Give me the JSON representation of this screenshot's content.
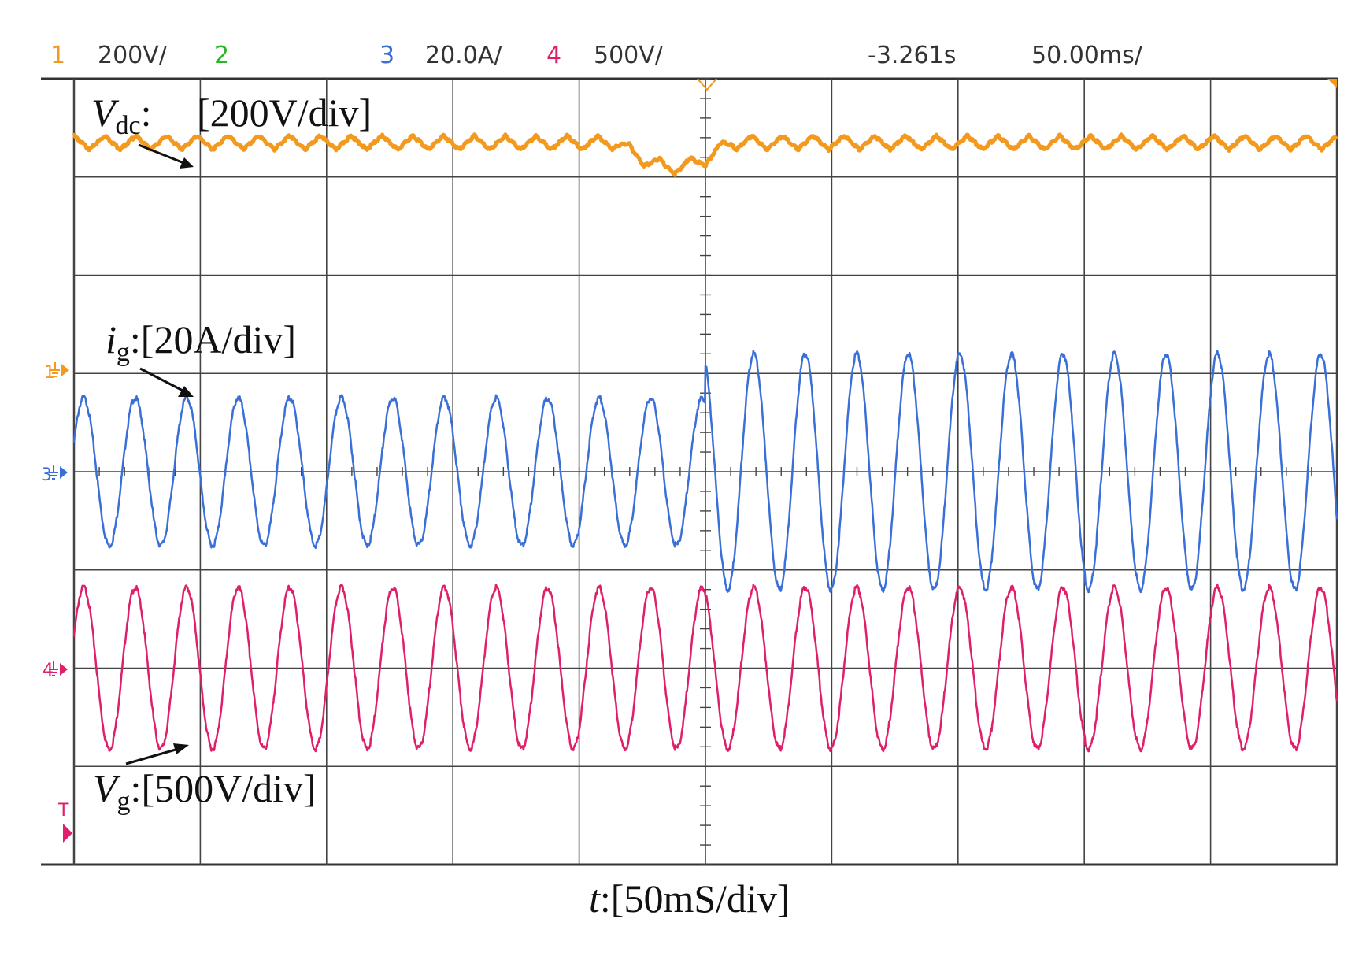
{
  "header": {
    "ch1_num": "1",
    "ch1_scale": "200V/",
    "ch2_num": "2",
    "ch3_num": "3",
    "ch3_scale": "20.0A/",
    "ch4_num": "4",
    "ch4_scale": "500V/",
    "delay": "-3.261s",
    "timebase": "50.00ms/"
  },
  "colors": {
    "ch1": "#f39a1e",
    "ch2": "#2db52d",
    "ch3": "#3a6fd8",
    "ch4": "#e01f6b"
  },
  "markers": {
    "ch1": "1",
    "ch3": "3",
    "ch4": "4",
    "trigger": "T"
  },
  "annotations": {
    "vdc_symbol": "V",
    "vdc_sub": "dc",
    "vdc_colon": ":",
    "vdc_scale": "[200V/div]",
    "ig_symbol": "i",
    "ig_sub": "g",
    "ig_scale": ":[20A/div]",
    "vg_symbol": "V",
    "vg_sub": "g",
    "vg_scale": ":[500V/div]",
    "t_symbol": "t",
    "t_scale": ":[50mS/div]"
  },
  "chart_data": {
    "type": "line",
    "title": "",
    "xlabel": "t:[50mS/div]",
    "x_divisions": 10,
    "y_divisions": 8,
    "time_per_div_ms": 50,
    "step_time_div": 5.0,
    "series": [
      {
        "name": "Vdc",
        "scale": "200V/div",
        "level_div": 7.35,
        "ripple_div": 0.1,
        "sag_div": 0.25,
        "ripple_cycles_per_div": 4.1
      },
      {
        "name": "ig",
        "scale": "20A/div",
        "center_div": 4.0,
        "amp_before_div": 0.75,
        "amp_after_div": 1.2,
        "cycles_per_div": 2.45
      },
      {
        "name": "Vg",
        "scale": "500V/div",
        "center_div": 2.0,
        "amp_div": 0.82,
        "cycles_per_div": 2.45
      }
    ]
  }
}
